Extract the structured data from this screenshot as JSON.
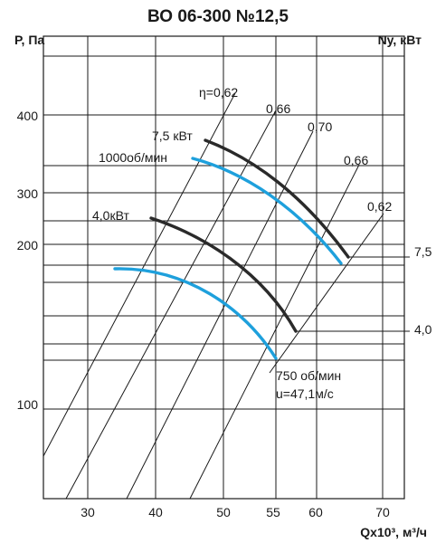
{
  "chart_data": {
    "type": "line",
    "title": "ВО 06-300 №12,5",
    "ylabel": "P, Па",
    "ylabel_right": "Ny, кВт",
    "xlabel": "Qx10³, м³/ч",
    "x_ticks": [
      30,
      40,
      50,
      55,
      60,
      70
    ],
    "y_ticks": [
      100,
      200,
      300,
      400
    ],
    "right_ticks": [
      "7,5",
      "4,0"
    ],
    "efficiency_labels": [
      "η=0,62",
      "0,66",
      "0,70",
      "0,66",
      "0,62"
    ],
    "power_labels": [
      "7,5 кВт",
      "4,0кВт"
    ],
    "speed_labels": [
      "1000об/мин",
      "750 об/мин"
    ],
    "tip_speed_label": "u=47,1м/с",
    "series": [
      {
        "curve": "pressure_1000rpm",
        "points": [
          [
            47,
            345
          ],
          [
            52,
            300
          ],
          [
            56,
            262
          ],
          [
            59,
            236
          ],
          [
            61,
            218
          ],
          [
            64,
            186
          ]
        ]
      },
      {
        "curve": "power_7_5kw",
        "points": [
          [
            47,
            365
          ],
          [
            53,
            318
          ],
          [
            57,
            282
          ],
          [
            60,
            252
          ],
          [
            62,
            232
          ],
          [
            65,
            196
          ]
        ]
      },
      {
        "curve": "power_4_0kw",
        "points": [
          [
            40,
            245
          ],
          [
            45,
            229
          ],
          [
            49,
            210
          ],
          [
            52,
            190
          ],
          [
            55,
            168
          ],
          [
            57,
            140
          ]
        ]
      },
      {
        "curve": "pressure_750rpm",
        "points": [
          [
            34,
            208
          ],
          [
            40,
            196
          ],
          [
            45,
            180
          ],
          [
            50,
            158
          ],
          [
            54,
            130
          ],
          [
            56,
            104
          ]
        ]
      }
    ]
  }
}
